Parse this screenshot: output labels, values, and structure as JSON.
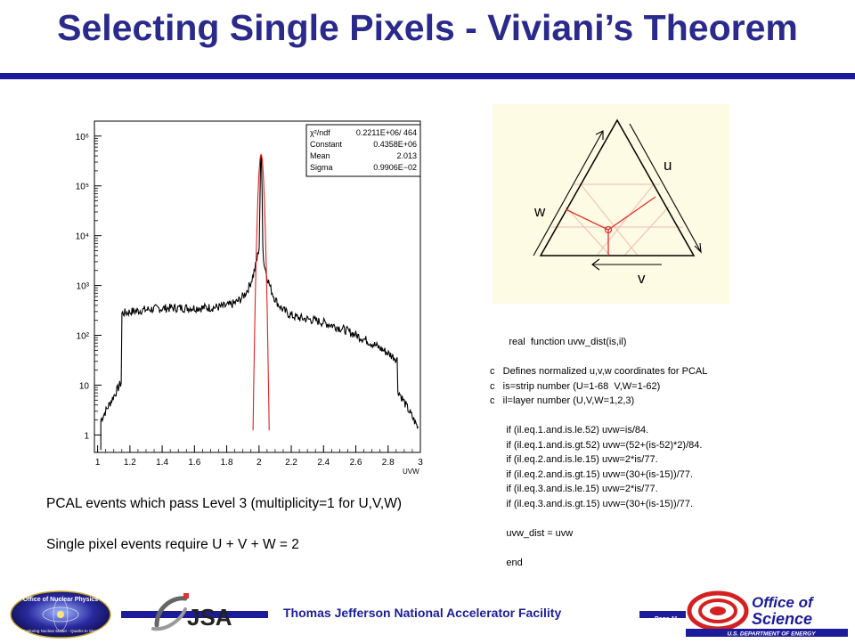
{
  "title": "Selecting Single Pixels - Viviani’s Theorem",
  "histogram": {
    "stats": [
      {
        "label": "χ²/ndf",
        "value": "0.2211E+06/   464"
      },
      {
        "label": "Constant",
        "value": "0.4358E+06"
      },
      {
        "label": "Mean",
        "value": "2.013"
      },
      {
        "label": "Sigma",
        "value": "0.9906E−02"
      }
    ],
    "y_ticks": [
      "1",
      "10",
      "10²",
      "10³",
      "10⁴",
      "10⁵",
      "10⁶"
    ],
    "x_ticks": [
      "1",
      "1.2",
      "1.4",
      "1.6",
      "1.8",
      "2",
      "2.2",
      "2.4",
      "2.6",
      "2.8",
      "3"
    ],
    "x_label": "UVW"
  },
  "triangle": {
    "label_u": "u",
    "label_v": "v",
    "label_w": "w"
  },
  "code_lines": [
    "       real  function uvw_dist(is,il)",
    "",
    "c   Defines normalized u,v,w coordinates for PCAL",
    "c   is=strip number (U=1-68  V,W=1-62)",
    "c   il=layer number (U,V,W=1,2,3)",
    "",
    "      if (il.eq.1.and.is.le.52) uvw=is/84.",
    "      if (il.eq.1.and.is.gt.52) uvw=(52+(is-52)*2)/84.",
    "      if (il.eq.2.and.is.le.15) uvw=2*is/77.",
    "      if (il.eq.2.and.is.gt.15) uvw=(30+(is-15))/77.",
    "      if (il.eq.3.and.is.le.15) uvw=2*is/77.",
    "      if (il.eq.3.and.is.gt.15) uvw=(30+(is-15))/77.",
    "",
    "      uvw_dist = uvw",
    "",
    "      end"
  ],
  "caption1": "PCAL events which pass Level 3  (multiplicity=1 for U,V,W)",
  "caption2": "Single pixel events require U + V + W = 2",
  "footer": {
    "text": "Thomas Jefferson National Accelerator Facility",
    "page": "Page 11",
    "logo_onp_top": "Office of Nuclear Physics",
    "logo_onp_bottom": "Exploring Nuclear Matter - Quarks to Stars",
    "logo_jsa": "JSA",
    "logo_sci_line1": "Office of",
    "logo_sci_line2": "Science",
    "logo_sci_line3": "U.S. DEPARTMENT OF ENERGY"
  }
}
